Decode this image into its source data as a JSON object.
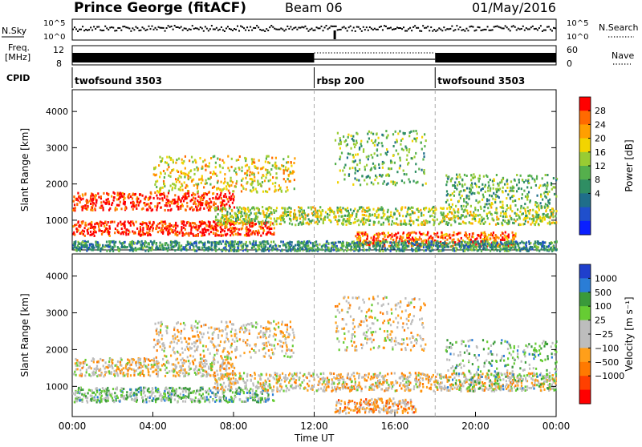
{
  "header": {
    "station": "Prince George (fitACF)",
    "beam": "Beam 06",
    "date": "01/May/2016"
  },
  "noise_panel": {
    "label": "N.Sky",
    "y_ticks": [
      "10^5",
      "10^0"
    ],
    "right_ticks": [
      "10^5",
      "10^0"
    ],
    "legend": "N.Search",
    "legend_style": "dotted"
  },
  "freq_panel": {
    "label": "Freq.",
    "unit": "[MHz]",
    "y_ticks": [
      "12",
      "8"
    ],
    "right_ticks": [
      "60",
      "0"
    ],
    "legend": "Nave",
    "legend_style": "dotted"
  },
  "cpid": {
    "label": "CPID",
    "segments": [
      {
        "start_hour": 0,
        "name": "twofsound 3503"
      },
      {
        "start_hour": 12,
        "name": "rbsp 200"
      },
      {
        "start_hour": 18,
        "name": "twofsound 3503"
      }
    ]
  },
  "chart_data": [
    {
      "type": "heatmap",
      "title": "",
      "ylabel": "Slant Range [km]",
      "xlabel": "",
      "x_range_hours": [
        0,
        24
      ],
      "ylim": [
        180,
        4600
      ],
      "y_ticks": [
        1000,
        2000,
        3000,
        4000
      ],
      "colorbar": {
        "label": "Power [dB]",
        "ticks": [
          "28",
          "24",
          "20",
          "16",
          "12",
          "8",
          "4"
        ],
        "colors": [
          "#ff0000",
          "#ff6a00",
          "#ff9f00",
          "#f2d400",
          "#99cc33",
          "#55b04c",
          "#2f8e63",
          "#1f6e8a",
          "#1f4fcc",
          "#0a1fff"
        ]
      },
      "scatter_regions": [
        {
          "t_start": 0.0,
          "t_end": 8.0,
          "r_low": 1300,
          "r_high": 1800,
          "level": 9
        },
        {
          "t_start": 0.0,
          "t_end": 10.0,
          "r_low": 600,
          "r_high": 1000,
          "level": 9
        },
        {
          "t_start": 4.0,
          "t_end": 11.0,
          "r_low": 1800,
          "r_high": 2800,
          "level": 6
        },
        {
          "t_start": 7.0,
          "t_end": 24.0,
          "r_low": 900,
          "r_high": 1400,
          "level": 5
        },
        {
          "t_start": 13.0,
          "t_end": 17.5,
          "r_low": 2000,
          "r_high": 3500,
          "level": 4
        },
        {
          "t_start": 14.0,
          "t_end": 22.0,
          "r_low": 300,
          "r_high": 700,
          "level": 8
        },
        {
          "t_start": 18.5,
          "t_end": 24.0,
          "r_low": 1400,
          "r_high": 2300,
          "level": 4
        },
        {
          "t_start": 0.0,
          "t_end": 24.0,
          "r_low": 180,
          "r_high": 450,
          "level": 3
        }
      ]
    },
    {
      "type": "heatmap",
      "title": "",
      "ylabel": "Slant Range [km]",
      "xlabel": "Time UT",
      "x_ticks": [
        "00:00",
        "04:00",
        "08:00",
        "12:00",
        "16:00",
        "20:00",
        "00:00"
      ],
      "x_range_hours": [
        0,
        24
      ],
      "ylim": [
        180,
        4600
      ],
      "y_ticks": [
        1000,
        2000,
        3000,
        4000
      ],
      "colorbar": {
        "label": "Velocity [m s⁻¹]",
        "ticks": [
          "1000",
          "500",
          "100",
          "25",
          "−25",
          "−100",
          "−500",
          "−1000"
        ],
        "colors": [
          "#1f3fcc",
          "#2a7dd6",
          "#3a9a3a",
          "#66cc33",
          "#bdbdbd",
          "#bdbdbd",
          "#ff9f1a",
          "#ff7a00",
          "#ff4000",
          "#ff0000"
        ]
      },
      "scatter_regions": [
        {
          "t_start": 0.0,
          "t_end": 8.0,
          "r_low": 1300,
          "r_high": 1800,
          "level": 4
        },
        {
          "t_start": 0.0,
          "t_end": 10.0,
          "r_low": 600,
          "r_high": 1000,
          "level": 6
        },
        {
          "t_start": 4.0,
          "t_end": 11.0,
          "r_low": 1800,
          "r_high": 2800,
          "level": 4
        },
        {
          "t_start": 7.0,
          "t_end": 24.0,
          "r_low": 900,
          "r_high": 1400,
          "level": 4
        },
        {
          "t_start": 13.0,
          "t_end": 17.5,
          "r_low": 2000,
          "r_high": 3500,
          "level": 4
        },
        {
          "t_start": 13.0,
          "t_end": 17.0,
          "r_low": 300,
          "r_high": 700,
          "level": 3
        },
        {
          "t_start": 18.5,
          "t_end": 24.0,
          "r_low": 900,
          "r_high": 2300,
          "level": 6
        }
      ]
    }
  ]
}
